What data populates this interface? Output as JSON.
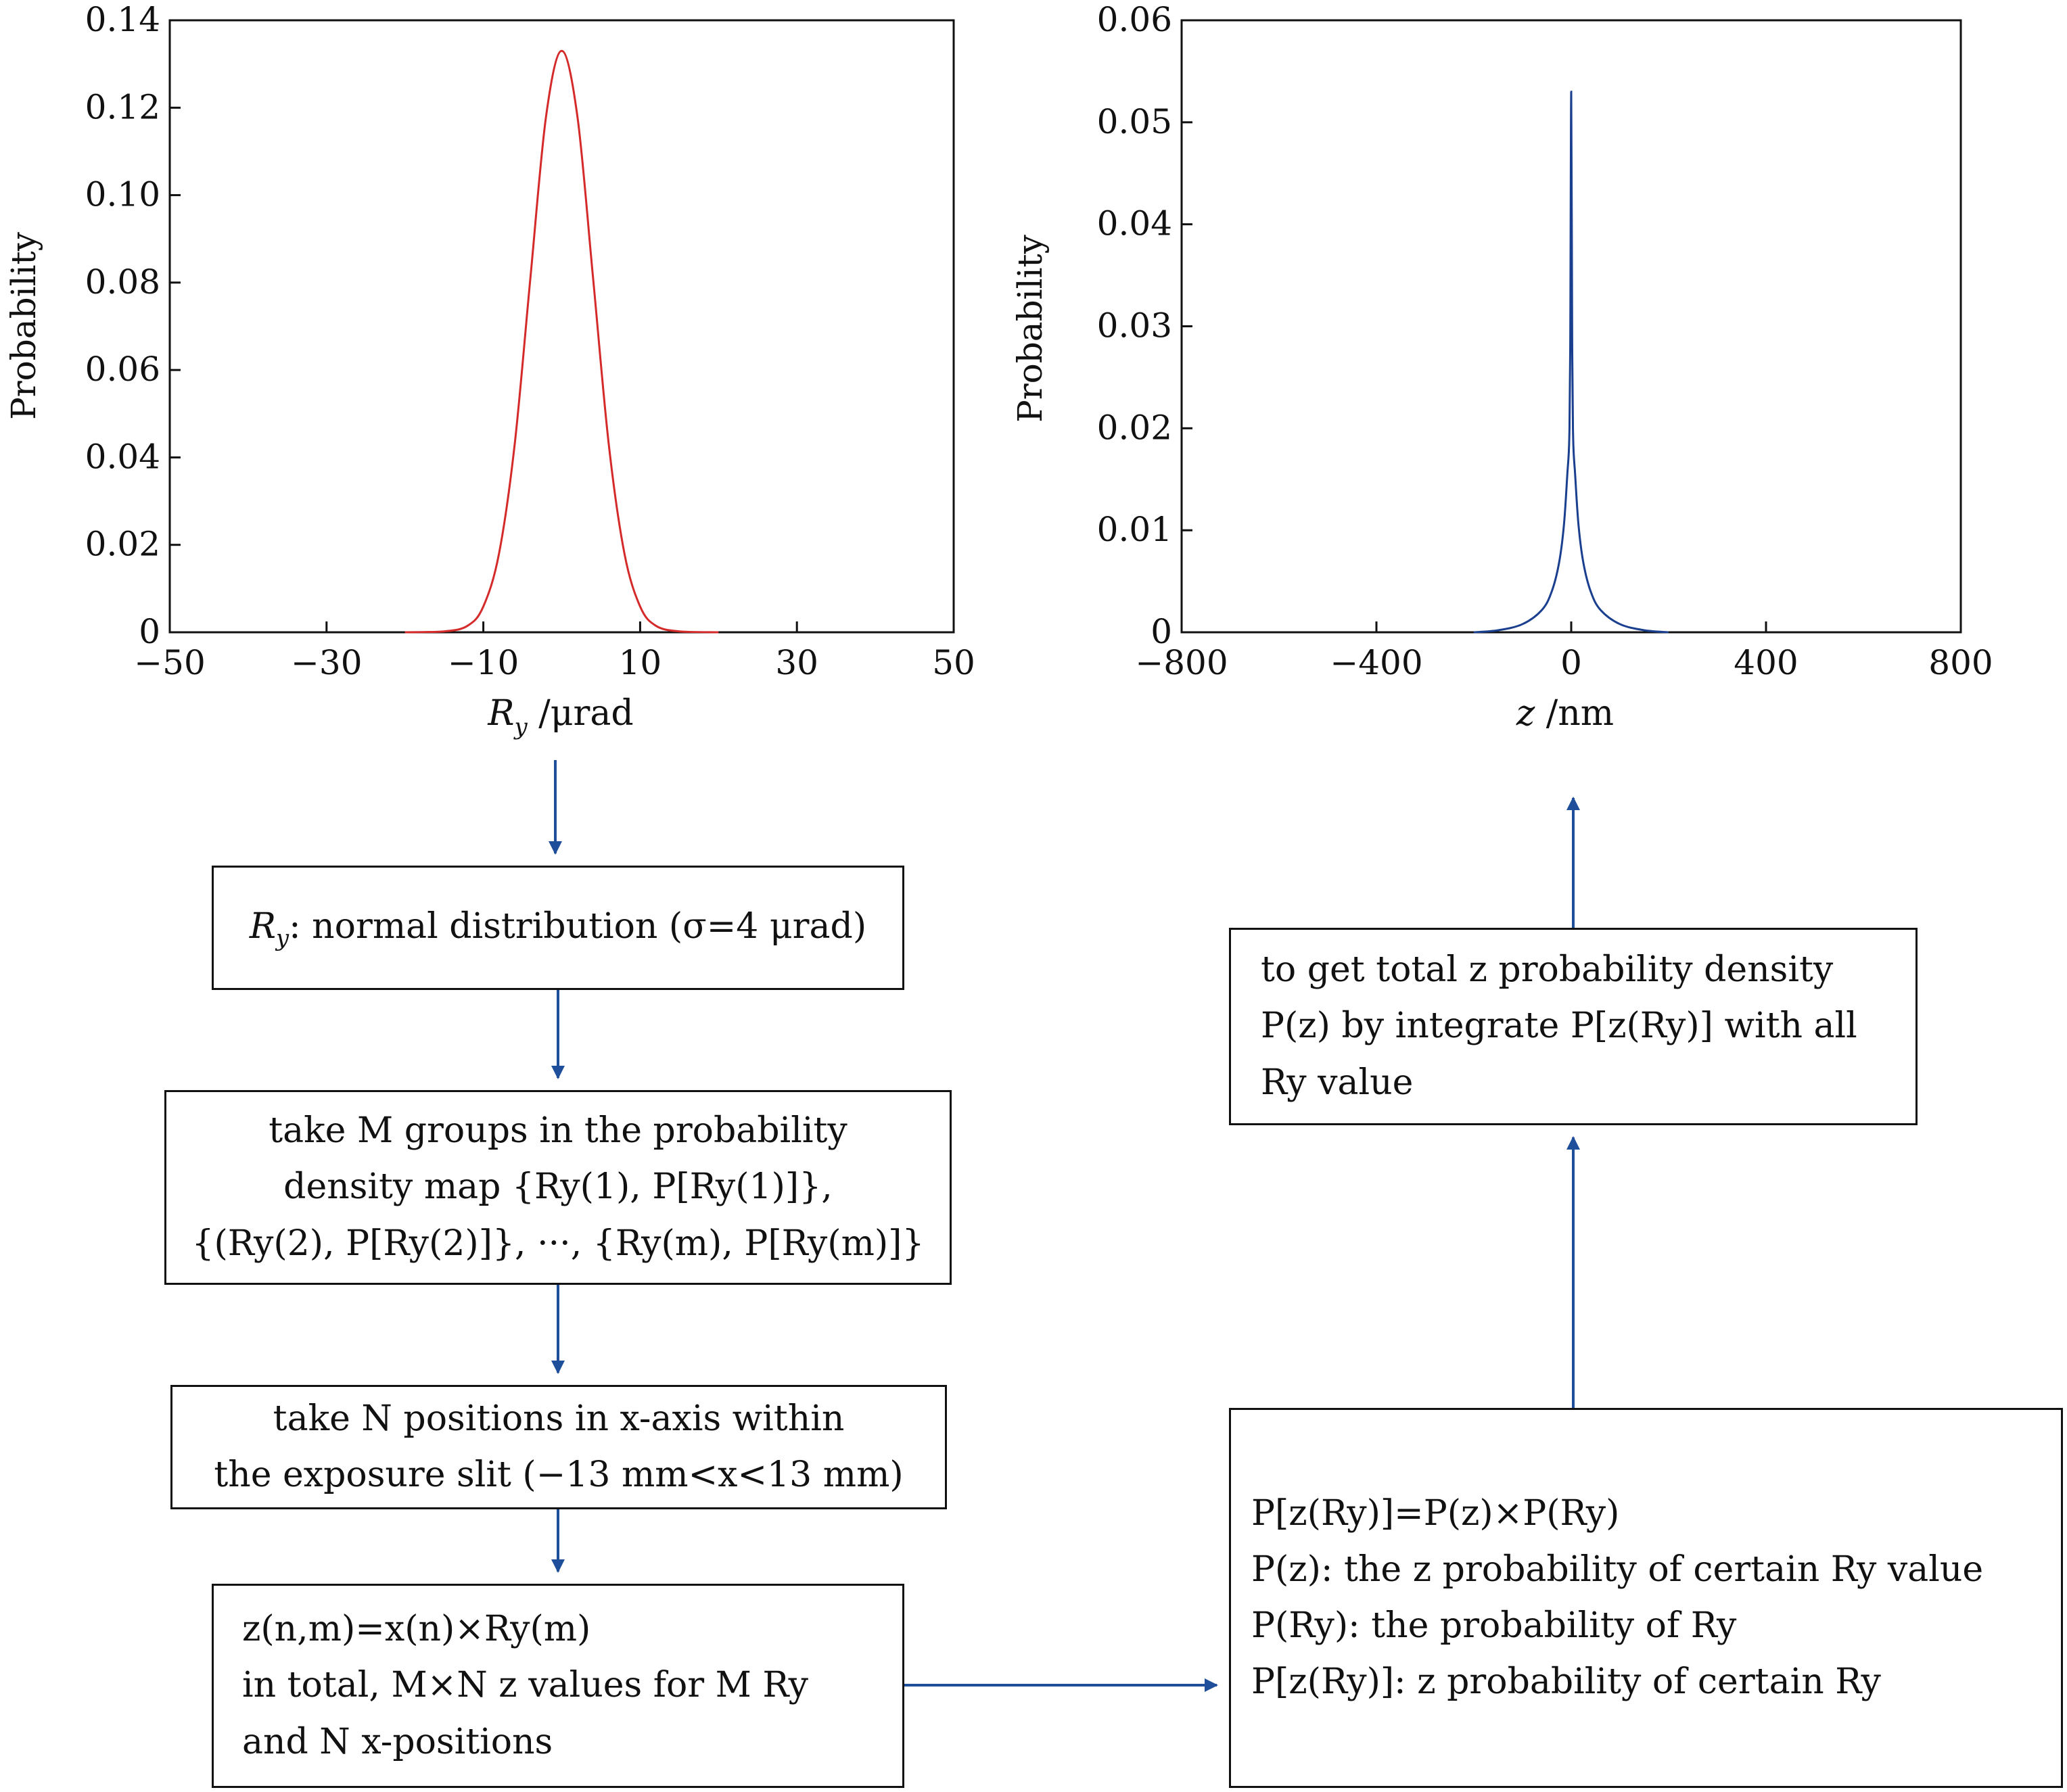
{
  "charts": {
    "left": {
      "ylabel": "Probability",
      "xlabel_symbol": "R",
      "xlabel_sub": "y",
      "xlabel_unit": " /μrad",
      "yticks": [
        "0",
        "0.02",
        "0.04",
        "0.06",
        "0.08",
        "0.10",
        "0.12",
        "0.14"
      ],
      "xticks": [
        "−50",
        "−30",
        "−10",
        "10",
        "30",
        "50"
      ],
      "line_color": "#d42a2a"
    },
    "right": {
      "ylabel": "Probability",
      "xlabel_symbol": "z",
      "xlabel_unit": " /nm",
      "yticks": [
        "0",
        "0.01",
        "0.02",
        "0.03",
        "0.04",
        "0.05",
        "0.06"
      ],
      "xticks": [
        "−800",
        "−400",
        "0",
        "400",
        "800"
      ],
      "line_color": "#1a3f8f"
    }
  },
  "chart_data": [
    {
      "type": "line",
      "xlabel": "Ry /μrad",
      "ylabel": "Probability",
      "xlim": [
        -50,
        50
      ],
      "ylim": [
        0,
        0.14
      ],
      "x": [
        -20,
        -15,
        -12,
        -10,
        -8,
        -6,
        -4,
        -2,
        0,
        2,
        4,
        6,
        8,
        10,
        12,
        15,
        20
      ],
      "y": [
        0.0,
        0.0002,
        0.0015,
        0.0059,
        0.018,
        0.043,
        0.081,
        0.118,
        0.133,
        0.118,
        0.081,
        0.043,
        0.018,
        0.0059,
        0.0015,
        0.0002,
        0.0
      ]
    },
    {
      "type": "line",
      "xlabel": "z /nm",
      "ylabel": "Probability",
      "xlim": [
        -800,
        800
      ],
      "ylim": [
        0,
        0.06
      ],
      "x": [
        -200,
        -150,
        -100,
        -60,
        -40,
        -25,
        -15,
        -8,
        -4,
        -2,
        0,
        2,
        4,
        8,
        15,
        25,
        40,
        60,
        100,
        150,
        200
      ],
      "y": [
        0.0,
        0.0002,
        0.0008,
        0.0022,
        0.004,
        0.0068,
        0.0105,
        0.0155,
        0.019,
        0.028,
        0.053,
        0.028,
        0.019,
        0.0155,
        0.0105,
        0.0068,
        0.004,
        0.0022,
        0.0008,
        0.0002,
        0.0
      ]
    }
  ],
  "flowchart": {
    "box1": {
      "r": "R",
      "y": "y",
      "rest": ": normal distribution (σ=4 μrad)"
    },
    "box2": {
      "line1": "take M groups in the probability",
      "line2": "density map {Ry(1), P[Ry(1)]},",
      "line3": "{(Ry(2), P[Ry(2)]}, ···, {Ry(m), P[Ry(m)]}"
    },
    "box3": {
      "line1": "take N positions in x-axis within",
      "line2": "the exposure slit (−13 mm<x<13 mm)"
    },
    "box4": {
      "line1": "z(n,m)=x(n)×Ry(m)",
      "line2": "in total, M×N z values for M Ry",
      "line3": "and N x-positions"
    },
    "box5": {
      "line1": "P[z(Ry)]=P(z)×P(Ry)",
      "line2": "P(z): the z probability of certain Ry value",
      "line3": "P(Ry): the probability of Ry",
      "line4": "P[z(Ry)]: z probability of certain Ry"
    },
    "box6": {
      "line1": "to get total z probability density",
      "line2": "P(z) by integrate P[z(Ry)] with all",
      "line3": "Ry value"
    },
    "arrow_color": "#1f4f9a"
  }
}
